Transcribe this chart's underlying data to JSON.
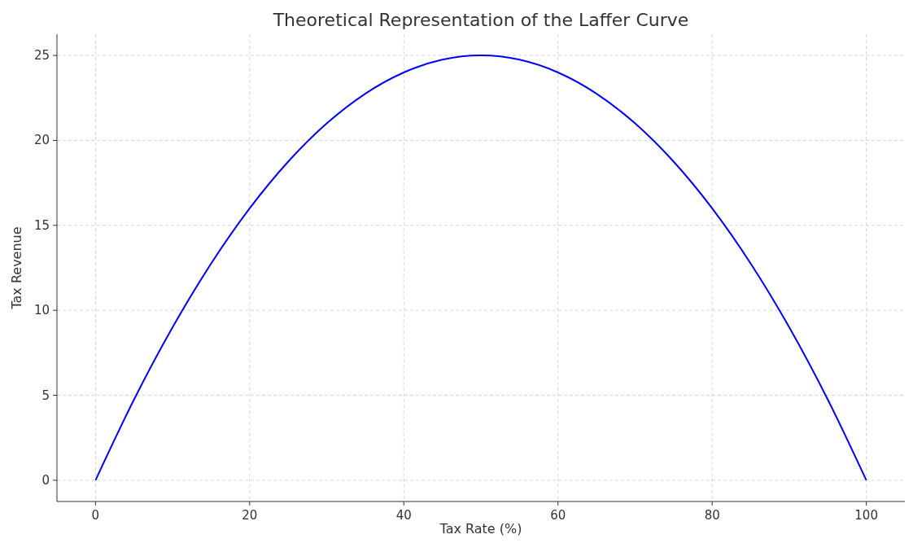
{
  "chart_data": {
    "type": "line",
    "title": "Theoretical Representation of the Laffer Curve",
    "xlabel": "Tax Rate (%)",
    "ylabel": "Tax Revenue",
    "x": [
      0,
      5,
      10,
      15,
      20,
      25,
      30,
      35,
      40,
      45,
      50,
      55,
      60,
      65,
      70,
      75,
      80,
      85,
      90,
      95,
      100
    ],
    "series": [
      {
        "color": "#0000ff",
        "values": [
          0,
          4.75,
          9,
          12.75,
          16,
          18.75,
          21,
          22.75,
          24,
          24.75,
          25,
          24.75,
          24,
          22.75,
          21,
          18.75,
          16,
          12.75,
          9,
          4.75,
          0
        ]
      }
    ],
    "xlim": [
      -5,
      105
    ],
    "ylim": [
      -1.25,
      26.25
    ],
    "xticks": [
      0,
      20,
      40,
      60,
      80,
      100
    ],
    "yticks": [
      0,
      5,
      10,
      15,
      20,
      25
    ],
    "grid": true,
    "line_style": "solid",
    "marker": "none"
  }
}
